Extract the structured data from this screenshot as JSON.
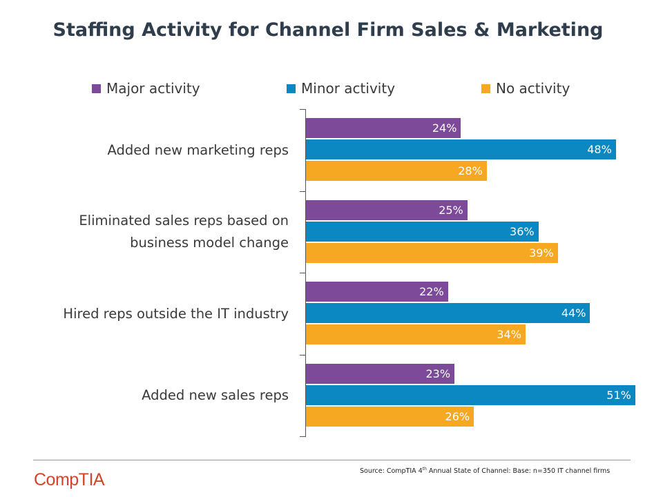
{
  "chart_data": {
    "type": "bar",
    "orientation": "horizontal",
    "title": "Staffing Activity for Channel Firm Sales & Marketing",
    "categories": [
      "Added new marketing reps",
      "Eliminated sales reps based on business model change",
      "Hired reps outside the IT industry",
      "Added new sales reps"
    ],
    "category_lines": [
      [
        "Added new marketing reps"
      ],
      [
        "Eliminated sales reps based on",
        "business model change"
      ],
      [
        "Hired reps outside the IT industry"
      ],
      [
        "Added new sales reps"
      ]
    ],
    "series": [
      {
        "name": "Major activity",
        "color": "#7d4a99",
        "values": [
          24,
          25,
          22,
          23
        ]
      },
      {
        "name": "Minor activity",
        "color": "#0b87c1",
        "values": [
          48,
          36,
          44,
          51
        ]
      },
      {
        "name": "No activity",
        "color": "#f7a823",
        "values": [
          28,
          39,
          34,
          26
        ]
      }
    ],
    "value_suffix": "%",
    "xlim": [
      0,
      51
    ],
    "grid": false,
    "legend_position": "top"
  },
  "footer": {
    "source_prefix": "Source: CompTIA 4",
    "source_sup": "th",
    "source_suffix": " Annual State of Channel: Base: n=350 IT channel firms",
    "logo_text": "CompTIA",
    "logo_mark": "."
  }
}
